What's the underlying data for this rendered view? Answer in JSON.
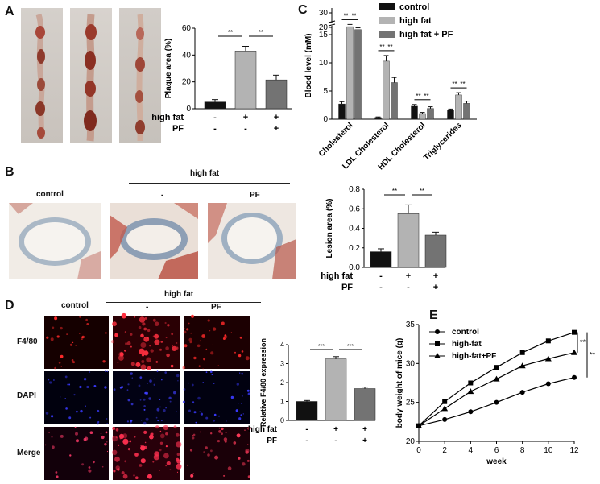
{
  "panels": {
    "A": "A",
    "B": "B",
    "C": "C",
    "D": "D",
    "E": "E"
  },
  "panel_text": {
    "b_control": "control",
    "b_highfat": "high fat",
    "b_minus": "-",
    "b_pf": "PF",
    "d_control": "control",
    "d_highfat": "high fat",
    "d_minus": "-",
    "d_pf": "PF",
    "d_rows": [
      "F4/80",
      "DAPI",
      "Merge"
    ]
  },
  "colors": {
    "control": "#111111",
    "high_fat": "#b3b3b3",
    "high_fat_pf": "#737373"
  },
  "chart_data": [
    {
      "id": "plaque",
      "type": "bar",
      "ylabel": "Plaque area (%)",
      "ylim": [
        0,
        60
      ],
      "yticks": [
        0,
        20,
        40,
        60
      ],
      "categories": [
        "control",
        "high fat",
        "high fat + PF"
      ],
      "values": [
        5,
        43,
        21.5
      ],
      "errors": [
        1.8,
        3.5,
        3.5
      ],
      "colors": [
        "#111111",
        "#b3b3b3",
        "#737373"
      ],
      "sig": [
        {
          "from": 0,
          "to": 1,
          "label": "**"
        },
        {
          "from": 1,
          "to": 2,
          "label": "**"
        }
      ],
      "table": {
        "rows": [
          {
            "label": "high fat",
            "marks": [
              "-",
              "+",
              "+"
            ]
          },
          {
            "label": "PF",
            "marks": [
              "-",
              "-",
              "+"
            ]
          }
        ]
      }
    },
    {
      "id": "blood",
      "type": "bar",
      "ylabel": "Blood level (mM)",
      "yticks": [
        "0",
        "5",
        "10",
        "15",
        "20",
        "30"
      ],
      "legend": [
        "control",
        "high fat",
        "high fat + PF"
      ],
      "colors": [
        "#111111",
        "#b3b3b3",
        "#737373"
      ],
      "categories": [
        "Cholesterol",
        "LDL Cholesterol",
        "HDL Cholesterol",
        "Triglycerides"
      ],
      "series": [
        {
          "name": "control",
          "values": [
            2.7,
            0.3,
            2.3,
            1.6
          ],
          "errors": [
            0.4,
            0.1,
            0.3,
            0.2
          ]
        },
        {
          "name": "high fat",
          "values": [
            20.5,
            10.3,
            1.0,
            4.3
          ],
          "errors": [
            1.5,
            1.0,
            0.2,
            0.4
          ]
        },
        {
          "name": "high fat + PF",
          "values": [
            18.5,
            6.5,
            1.9,
            2.8
          ],
          "errors": [
            1.2,
            0.9,
            0.3,
            0.4
          ]
        }
      ],
      "sig_label": "**"
    },
    {
      "id": "lesion",
      "type": "bar",
      "ylabel": "Lesion area (%)",
      "ylim": [
        0,
        0.8
      ],
      "yticks": [
        "0.0",
        "0.2",
        "0.4",
        "0.6",
        "0.8"
      ],
      "categories": [
        "control",
        "high fat",
        "high fat + PF"
      ],
      "values": [
        0.16,
        0.55,
        0.33
      ],
      "errors": [
        0.03,
        0.09,
        0.03
      ],
      "colors": [
        "#111111",
        "#b3b3b3",
        "#737373"
      ],
      "sig": [
        {
          "from": 0,
          "to": 1,
          "label": "**"
        },
        {
          "from": 1,
          "to": 2,
          "label": "**"
        }
      ],
      "table": {
        "rows": [
          {
            "label": "high fat",
            "marks": [
              "-",
              "+",
              "+"
            ]
          },
          {
            "label": "PF",
            "marks": [
              "-",
              "-",
              "+"
            ]
          }
        ]
      }
    },
    {
      "id": "f480",
      "type": "bar",
      "ylabel": "Relative F4/80 expression",
      "ylim": [
        0,
        4
      ],
      "yticks": [
        "0",
        "1",
        "2",
        "3",
        "4"
      ],
      "categories": [
        "control",
        "high fat",
        "high fat + PF"
      ],
      "values": [
        1.0,
        3.25,
        1.68
      ],
      "errors": [
        0.05,
        0.12,
        0.08
      ],
      "colors": [
        "#111111",
        "#b3b3b3",
        "#737373"
      ],
      "sig": [
        {
          "from": 0,
          "to": 1,
          "label": "***"
        },
        {
          "from": 1,
          "to": 2,
          "label": "***"
        }
      ],
      "table": {
        "rows": [
          {
            "label": "high fat",
            "marks": [
              "-",
              "+",
              "+"
            ]
          },
          {
            "label": "PF",
            "marks": [
              "-",
              "-",
              "+"
            ]
          }
        ]
      }
    },
    {
      "id": "weight",
      "type": "line",
      "xlabel": "week",
      "ylabel": "body weight of mice (g)",
      "xlim": [
        0,
        12
      ],
      "ylim": [
        20,
        35
      ],
      "xticks": [
        "0",
        "2",
        "4",
        "6",
        "8",
        "10",
        "12"
      ],
      "yticks": [
        "20",
        "25",
        "30",
        "35"
      ],
      "x": [
        0,
        2,
        4,
        6,
        8,
        10,
        12
      ],
      "series": [
        {
          "name": "control",
          "marker": "circle",
          "values": [
            22.0,
            22.8,
            23.8,
            25.0,
            26.3,
            27.4,
            28.2
          ]
        },
        {
          "name": "high-fat",
          "marker": "square",
          "values": [
            22.0,
            25.1,
            27.5,
            29.5,
            31.4,
            32.9,
            34.0
          ]
        },
        {
          "name": "high-fat+PF",
          "marker": "triangle",
          "values": [
            22.0,
            24.2,
            26.4,
            28.0,
            29.7,
            30.6,
            31.4
          ]
        }
      ],
      "sig_label": "**"
    }
  ]
}
